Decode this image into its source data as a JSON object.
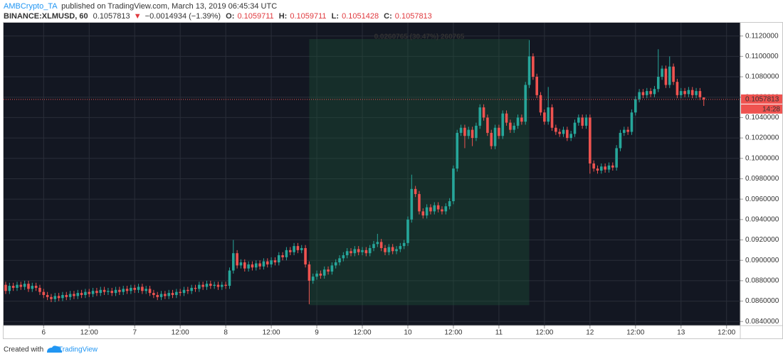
{
  "header": {
    "author": "AMBCrypto_TA",
    "published": "published on TradingView.com, March 13, 2019 06:45:34 UTC",
    "symbol": "BINANCE:XLMUSD, 60",
    "price": "0.1057813",
    "arrow": "▼",
    "change": "−0.0014934 (−1.39%)",
    "ohlc": [
      {
        "key": "O:",
        "value": "0.1059711"
      },
      {
        "key": "H:",
        "value": "0.1059711"
      },
      {
        "key": "L:",
        "value": "0.1051428"
      },
      {
        "key": "C:",
        "value": "0.1057813"
      }
    ]
  },
  "footer": {
    "created": "Created with",
    "brand": "TradingView"
  },
  "chart_data": {
    "type": "candlestick",
    "up_color": "#26a69a",
    "down_color": "#ef5350",
    "grid": true,
    "ylim": [
      0.0836,
      0.1133
    ],
    "yticks": [
      {
        "value": 0.084,
        "label": "0.0840000"
      },
      {
        "value": 0.086,
        "label": "0.0860000"
      },
      {
        "value": 0.088,
        "label": "0.0880000"
      },
      {
        "value": 0.09,
        "label": "0.0900000"
      },
      {
        "value": 0.092,
        "label": "0.0920000"
      },
      {
        "value": 0.094,
        "label": "0.0940000"
      },
      {
        "value": 0.096,
        "label": "0.0960000"
      },
      {
        "value": 0.098,
        "label": "0.0980000"
      },
      {
        "value": 0.1,
        "label": "0.1000000"
      },
      {
        "value": 0.102,
        "label": "0.1020000"
      },
      {
        "value": 0.104,
        "label": "0.1040000"
      },
      {
        "value": 0.106,
        "label": "0.1060000"
      },
      {
        "value": 0.108,
        "label": "0.1080000"
      },
      {
        "value": 0.11,
        "label": "0.1100000"
      },
      {
        "value": 0.112,
        "label": "0.1120000"
      }
    ],
    "categories": [
      null,
      null,
      null,
      null,
      null,
      null,
      null,
      null,
      null,
      null,
      "6",
      null,
      null,
      null,
      null,
      null,
      null,
      null,
      null,
      null,
      null,
      null,
      "12:00",
      null,
      null,
      null,
      null,
      null,
      null,
      null,
      null,
      null,
      null,
      null,
      "7",
      null,
      null,
      null,
      null,
      null,
      null,
      null,
      null,
      null,
      null,
      null,
      "12:00",
      null,
      null,
      null,
      null,
      null,
      null,
      null,
      null,
      null,
      null,
      null,
      "8",
      null,
      null,
      null,
      null,
      null,
      null,
      null,
      null,
      null,
      null,
      null,
      "12:00",
      null,
      null,
      null,
      null,
      null,
      null,
      null,
      null,
      null,
      null,
      null,
      "9",
      null,
      null,
      null,
      null,
      null,
      null,
      null,
      null,
      null,
      null,
      null,
      "12:00",
      null,
      null,
      null,
      null,
      null,
      null,
      null,
      null,
      null,
      null,
      null,
      "10",
      null,
      null,
      null,
      null,
      null,
      null,
      null,
      null,
      null,
      null,
      null,
      "12:00",
      null,
      null,
      null,
      null,
      null,
      null,
      null,
      null,
      null,
      null,
      null,
      "11",
      null,
      null,
      null,
      null,
      null,
      null,
      null,
      null,
      null,
      null,
      null,
      "12:00",
      null,
      null,
      null,
      null,
      null,
      null,
      null,
      null,
      null,
      null,
      null,
      "12",
      null,
      null,
      null,
      null,
      null,
      null,
      null,
      null,
      null,
      null,
      null,
      "12:00",
      null,
      null,
      null,
      null,
      null,
      null,
      null,
      null,
      null,
      null,
      null,
      "13",
      null,
      null,
      null,
      null,
      null,
      null,
      null,
      null,
      null,
      null,
      null,
      "12:00",
      null,
      null,
      null
    ],
    "open": [
      0.0876,
      0.087,
      0.0875,
      0.0873,
      0.0876,
      0.0874,
      0.0877,
      0.0872,
      0.0875,
      0.0873,
      0.0869,
      0.0866,
      0.0864,
      0.0862,
      0.0865,
      0.0863,
      0.0866,
      0.0864,
      0.0867,
      0.0865,
      0.0868,
      0.0866,
      0.0869,
      0.0867,
      0.087,
      0.0868,
      0.0871,
      0.0869,
      0.087,
      0.0868,
      0.0871,
      0.0869,
      0.0872,
      0.087,
      0.0873,
      0.0871,
      0.0874,
      0.087,
      0.0872,
      0.0868,
      0.0866,
      0.0864,
      0.0867,
      0.0865,
      0.0868,
      0.0866,
      0.0869,
      0.0868,
      0.0871,
      0.087,
      0.0873,
      0.0872,
      0.0876,
      0.0874,
      0.0877,
      0.0875,
      0.0876,
      0.0874,
      0.0876,
      0.0875,
      0.089,
      0.0907,
      0.0895,
      0.0898,
      0.0892,
      0.0896,
      0.0893,
      0.0897,
      0.0894,
      0.0899,
      0.0896,
      0.09,
      0.0898,
      0.0905,
      0.0903,
      0.091,
      0.0908,
      0.0914,
      0.091,
      0.0912,
      0.0896,
      0.088,
      0.0884,
      0.0887,
      0.0885,
      0.0891,
      0.0889,
      0.0895,
      0.0898,
      0.0902,
      0.0905,
      0.0909,
      0.0907,
      0.0911,
      0.0908,
      0.091,
      0.0907,
      0.0912,
      0.0916,
      0.0918,
      0.0912,
      0.0908,
      0.0913,
      0.0909,
      0.0911,
      0.0914,
      0.0917,
      0.094,
      0.097,
      0.0965,
      0.0948,
      0.0944,
      0.0952,
      0.0948,
      0.0954,
      0.095,
      0.0948,
      0.0953,
      0.0958,
      0.099,
      0.1025,
      0.103,
      0.1022,
      0.1028,
      0.102,
      0.1032,
      0.105,
      0.104,
      0.1025,
      0.1012,
      0.103,
      0.1022,
      0.1044,
      0.1035,
      0.1028,
      0.1032,
      0.104,
      0.1036,
      0.1072,
      0.11,
      0.108,
      0.1062,
      0.1045,
      0.1036,
      0.105,
      0.103,
      0.1026,
      0.1024,
      0.1028,
      0.102,
      0.1024,
      0.1035,
      0.104,
      0.1032,
      0.104,
      0.0995,
      0.099,
      0.0988,
      0.0992,
      0.0989,
      0.0993,
      0.0991,
      0.101,
      0.1025,
      0.1028,
      0.1026,
      0.1045,
      0.1058,
      0.1065,
      0.1062,
      0.1066,
      0.1063,
      0.1068,
      0.108,
      0.1088,
      0.1072,
      0.109,
      0.1075,
      0.1062,
      0.1066,
      0.1063,
      0.1067,
      0.1062,
      0.1066,
      0.1059711,
      null,
      null,
      null,
      null,
      null,
      null,
      null,
      null,
      null
    ],
    "high": [
      0.0879,
      0.0878,
      0.0878,
      0.0879,
      0.0879,
      0.088,
      0.088,
      0.0878,
      0.0878,
      0.0876,
      0.0872,
      0.0869,
      0.0867,
      0.0868,
      0.0868,
      0.0869,
      0.0869,
      0.087,
      0.087,
      0.0871,
      0.0871,
      0.0872,
      0.0872,
      0.0873,
      0.0873,
      0.0874,
      0.0874,
      0.0873,
      0.0873,
      0.0874,
      0.0874,
      0.0875,
      0.0875,
      0.0876,
      0.0876,
      0.0877,
      0.0877,
      0.0875,
      0.0875,
      0.0871,
      0.0869,
      0.087,
      0.087,
      0.0871,
      0.0871,
      0.0872,
      0.0872,
      0.0874,
      0.0874,
      0.0876,
      0.0876,
      0.0879,
      0.0879,
      0.088,
      0.088,
      0.0879,
      0.0879,
      0.0879,
      0.0879,
      0.0893,
      0.092,
      0.091,
      0.0901,
      0.0901,
      0.0899,
      0.0899,
      0.09,
      0.09,
      0.0902,
      0.0902,
      0.0903,
      0.0903,
      0.0908,
      0.0908,
      0.0913,
      0.0913,
      0.0917,
      0.0917,
      0.0915,
      0.0915,
      0.0899,
      0.0887,
      0.089,
      0.089,
      0.0894,
      0.0894,
      0.0898,
      0.0901,
      0.0905,
      0.0908,
      0.0912,
      0.0912,
      0.0914,
      0.0914,
      0.0913,
      0.0913,
      0.0915,
      0.0919,
      0.0926,
      0.0921,
      0.0915,
      0.0916,
      0.0916,
      0.0914,
      0.0917,
      0.092,
      0.0943,
      0.0984,
      0.0973,
      0.0968,
      0.0951,
      0.0955,
      0.0955,
      0.0957,
      0.0957,
      0.0953,
      0.0956,
      0.0961,
      0.0993,
      0.1028,
      0.1033,
      0.1033,
      0.1031,
      0.1031,
      0.1035,
      0.1053,
      0.1053,
      0.1043,
      0.1028,
      0.1033,
      0.1033,
      0.1047,
      0.1047,
      0.1038,
      0.1035,
      0.1043,
      0.1043,
      0.1075,
      0.1116,
      0.1103,
      0.1083,
      0.1065,
      0.1048,
      0.107,
      0.1053,
      0.1033,
      0.1029,
      0.1031,
      0.1031,
      0.1027,
      0.1038,
      0.1043,
      0.1043,
      0.1043,
      0.1043,
      0.0998,
      0.0993,
      0.0995,
      0.0995,
      0.0996,
      0.0996,
      0.1013,
      0.1028,
      0.1031,
      0.1031,
      0.1048,
      0.1061,
      0.1068,
      0.1068,
      0.1069,
      0.1069,
      0.1071,
      0.1107,
      0.1091,
      0.1091,
      0.11,
      0.1093,
      0.1078,
      0.1069,
      0.1069,
      0.107,
      0.107,
      0.1069,
      0.1069,
      0.1059711,
      null,
      null,
      null,
      null,
      null,
      null,
      null,
      null,
      null
    ],
    "low": [
      0.0867,
      0.0867,
      0.087,
      0.087,
      0.0871,
      0.0871,
      0.0869,
      0.0869,
      0.087,
      0.0866,
      0.0863,
      0.0861,
      0.0859,
      0.0859,
      0.086,
      0.086,
      0.0861,
      0.0861,
      0.0862,
      0.0862,
      0.0863,
      0.0863,
      0.0864,
      0.0864,
      0.0865,
      0.0865,
      0.0866,
      0.0866,
      0.0865,
      0.0865,
      0.0866,
      0.0866,
      0.0867,
      0.0867,
      0.0868,
      0.0868,
      0.0867,
      0.0867,
      0.0865,
      0.0863,
      0.0861,
      0.0861,
      0.0862,
      0.0862,
      0.0863,
      0.0863,
      0.0865,
      0.0865,
      0.0867,
      0.0867,
      0.0869,
      0.0869,
      0.0871,
      0.0871,
      0.0872,
      0.0872,
      0.0871,
      0.0871,
      0.0872,
      0.0872,
      0.0887,
      0.0892,
      0.0892,
      0.0889,
      0.0889,
      0.089,
      0.089,
      0.0891,
      0.0891,
      0.0893,
      0.0893,
      0.0895,
      0.0895,
      0.09,
      0.09,
      0.0905,
      0.0905,
      0.0907,
      0.0907,
      0.0893,
      0.0857,
      0.0877,
      0.0881,
      0.0882,
      0.0882,
      0.0886,
      0.0886,
      0.0892,
      0.0895,
      0.0899,
      0.0902,
      0.0904,
      0.0904,
      0.0905,
      0.0905,
      0.0904,
      0.0904,
      0.0909,
      0.0913,
      0.0909,
      0.0905,
      0.0905,
      0.0906,
      0.0906,
      0.0908,
      0.0911,
      0.0914,
      0.0937,
      0.0962,
      0.0945,
      0.0941,
      0.0941,
      0.0945,
      0.0945,
      0.0947,
      0.0945,
      0.0945,
      0.095,
      0.0955,
      0.0987,
      0.1022,
      0.101,
      0.1019,
      0.1012,
      0.1017,
      0.1029,
      0.1037,
      0.1022,
      0.1009,
      0.1009,
      0.1019,
      0.1019,
      0.1032,
      0.1025,
      0.1025,
      0.1029,
      0.1033,
      0.1033,
      0.1069,
      0.1077,
      0.1059,
      0.1042,
      0.1033,
      0.1033,
      0.1027,
      0.1023,
      0.1021,
      0.1021,
      0.1017,
      0.1017,
      0.1021,
      0.1032,
      0.1029,
      0.1029,
      0.0985,
      0.0987,
      0.0985,
      0.0985,
      0.0986,
      0.0986,
      0.0988,
      0.0988,
      0.1007,
      0.1022,
      0.1023,
      0.1023,
      0.1042,
      0.1055,
      0.1059,
      0.1059,
      0.106,
      0.106,
      0.1065,
      0.1077,
      0.1069,
      0.1069,
      0.1072,
      0.1059,
      0.1059,
      0.106,
      0.106,
      0.1059,
      0.1059,
      0.1057,
      0.1051428,
      null,
      null,
      null,
      null,
      null,
      null,
      null,
      null,
      null
    ],
    "close": [
      0.087,
      0.0875,
      0.0873,
      0.0876,
      0.0874,
      0.0877,
      0.0872,
      0.0875,
      0.0873,
      0.0869,
      0.0866,
      0.0864,
      0.0862,
      0.0865,
      0.0863,
      0.0866,
      0.0864,
      0.0867,
      0.0865,
      0.0868,
      0.0866,
      0.0869,
      0.0867,
      0.087,
      0.0868,
      0.0871,
      0.0869,
      0.087,
      0.0868,
      0.0871,
      0.0869,
      0.0872,
      0.087,
      0.0873,
      0.0871,
      0.0874,
      0.087,
      0.0872,
      0.0868,
      0.0866,
      0.0864,
      0.0867,
      0.0865,
      0.0868,
      0.0866,
      0.0869,
      0.0868,
      0.0871,
      0.087,
      0.0873,
      0.0872,
      0.0876,
      0.0874,
      0.0877,
      0.0875,
      0.0876,
      0.0874,
      0.0876,
      0.0875,
      0.089,
      0.0907,
      0.0895,
      0.0898,
      0.0892,
      0.0896,
      0.0893,
      0.0897,
      0.0894,
      0.0899,
      0.0896,
      0.09,
      0.0898,
      0.0905,
      0.0903,
      0.091,
      0.0908,
      0.0914,
      0.091,
      0.0912,
      0.0896,
      0.088,
      0.0884,
      0.0887,
      0.0885,
      0.0891,
      0.0889,
      0.0895,
      0.0898,
      0.0902,
      0.0905,
      0.0909,
      0.0907,
      0.0911,
      0.0908,
      0.091,
      0.0907,
      0.0912,
      0.0916,
      0.0918,
      0.0912,
      0.0908,
      0.0913,
      0.0909,
      0.0911,
      0.0914,
      0.0917,
      0.094,
      0.097,
      0.0965,
      0.0948,
      0.0944,
      0.0952,
      0.0948,
      0.0954,
      0.095,
      0.0948,
      0.0953,
      0.0958,
      0.099,
      0.1025,
      0.103,
      0.1022,
      0.1028,
      0.102,
      0.1032,
      0.105,
      0.104,
      0.1025,
      0.1012,
      0.103,
      0.1022,
      0.1044,
      0.1035,
      0.1028,
      0.1032,
      0.104,
      0.1036,
      0.1072,
      0.11,
      0.108,
      0.1062,
      0.1045,
      0.1036,
      0.105,
      0.103,
      0.1026,
      0.1024,
      0.1028,
      0.102,
      0.1024,
      0.1035,
      0.104,
      0.1032,
      0.104,
      0.0995,
      0.099,
      0.0988,
      0.0992,
      0.0989,
      0.0993,
      0.0991,
      0.101,
      0.1025,
      0.1028,
      0.1026,
      0.1045,
      0.1058,
      0.1065,
      0.1062,
      0.1066,
      0.1063,
      0.1068,
      0.108,
      0.1088,
      0.1072,
      0.109,
      0.1075,
      0.1062,
      0.1066,
      0.1063,
      0.1067,
      0.1062,
      0.1066,
      0.106,
      0.1057813,
      null,
      null,
      null,
      null,
      null,
      null,
      null,
      null,
      null
    ],
    "measure": {
      "text": "0.0260765 (30.47%) 260765",
      "range": [
        0.0856,
        0.1117
      ],
      "span": [
        80,
        138
      ]
    },
    "last_price": {
      "value": 0.1057813,
      "label": "0.1057813",
      "countdown": "14:28"
    }
  }
}
